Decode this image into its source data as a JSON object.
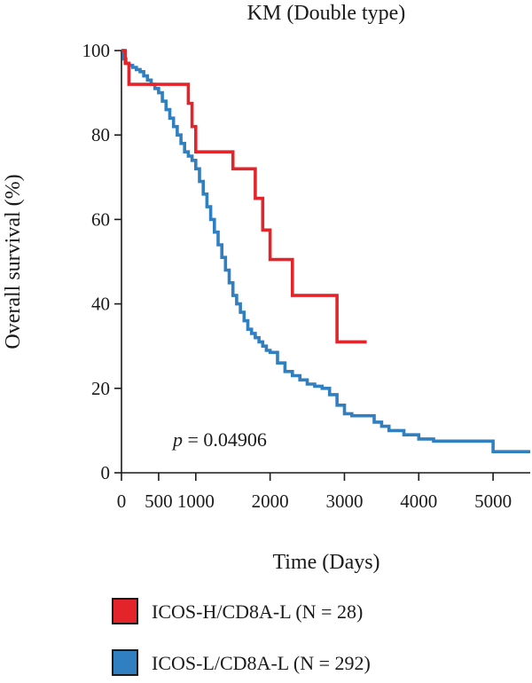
{
  "chart_data": {
    "type": "line",
    "subtype": "kaplan-meier step",
    "title": "KM (Double type)",
    "xlabel": "Time (Days)",
    "ylabel": "Overall survival (%)",
    "xlim": [
      0,
      5500
    ],
    "ylim": [
      0,
      100
    ],
    "x_ticks": [
      0,
      500,
      1000,
      2000,
      3000,
      4000,
      5000
    ],
    "y_ticks": [
      0,
      20,
      40,
      60,
      80,
      100
    ],
    "annotation": {
      "italic": "p",
      "rest": " = 0.04906"
    },
    "legend_position": "bottom",
    "series": [
      {
        "name": "ICOS-H/CD8A-L (N = 28)",
        "color": "#e3242b",
        "x": [
          0,
          50,
          100,
          600,
          900,
          950,
          1000,
          1500,
          1800,
          1900,
          2000,
          2300,
          2900,
          3300
        ],
        "y": [
          100,
          97,
          92,
          92,
          87.5,
          82,
          76,
          72,
          65,
          57.5,
          50.5,
          42,
          31,
          31
        ]
      },
      {
        "name": "ICOS-L/CD8A-L (N = 292)",
        "color": "#2f7fc1",
        "x": [
          0,
          30,
          60,
          100,
          150,
          200,
          250,
          300,
          350,
          400,
          450,
          500,
          550,
          600,
          650,
          700,
          750,
          800,
          850,
          900,
          950,
          1000,
          1050,
          1100,
          1150,
          1200,
          1250,
          1300,
          1350,
          1400,
          1450,
          1500,
          1550,
          1600,
          1650,
          1700,
          1750,
          1800,
          1850,
          1900,
          1950,
          2000,
          2100,
          2200,
          2300,
          2400,
          2500,
          2600,
          2700,
          2800,
          2900,
          3000,
          3100,
          3200,
          3300,
          3400,
          3500,
          3600,
          3800,
          4000,
          4200,
          4400,
          4600,
          5000,
          5400,
          5500
        ],
        "y": [
          100,
          98,
          97,
          96.5,
          96,
          95.5,
          95,
          94,
          93,
          92,
          91,
          90,
          88,
          86,
          84,
          82,
          80,
          78,
          76,
          75,
          74,
          72,
          69,
          66,
          63,
          60,
          57,
          54,
          51,
          48,
          45,
          42,
          40,
          38,
          36,
          34,
          33,
          32,
          31,
          30,
          29,
          28.5,
          26,
          24,
          23,
          22,
          21,
          20.5,
          20,
          18.5,
          16,
          14,
          13.5,
          13.5,
          13.5,
          12,
          11,
          10,
          9,
          8,
          7.5,
          7.5,
          7.5,
          5,
          5,
          5
        ]
      }
    ]
  }
}
